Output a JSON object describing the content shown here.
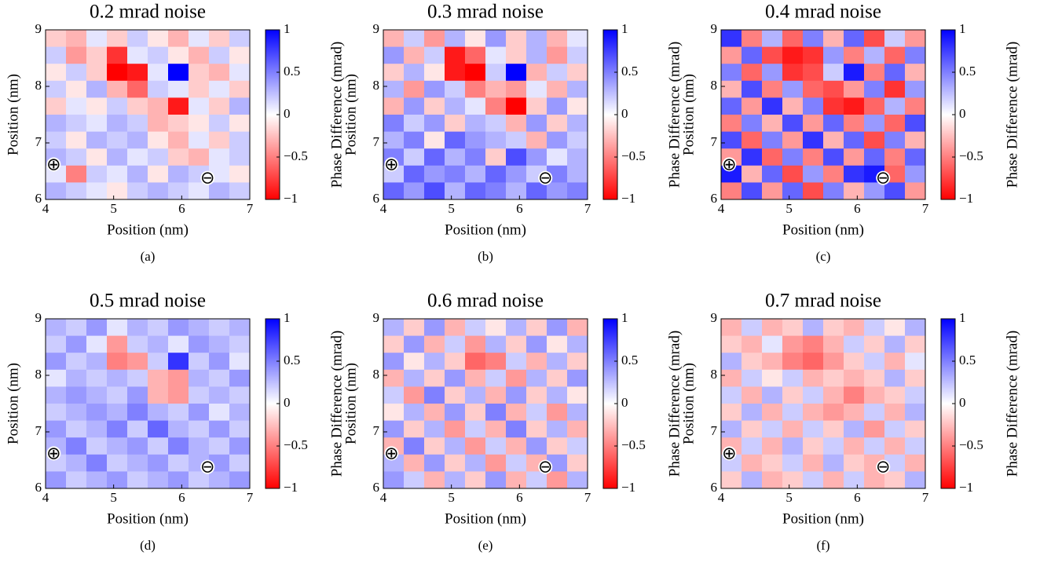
{
  "chart_data": [
    {
      "type": "heatmap",
      "title": "0.2 mrad noise",
      "caption": "(a)",
      "xlabel": "Position (nm)",
      "ylabel": "Position (nm)",
      "colorbar_label": "Phase Difference (mrad)",
      "xlim": [
        4,
        7
      ],
      "ylim": [
        6,
        9
      ],
      "xticks": [
        4,
        5,
        6,
        7
      ],
      "yticks": [
        6,
        7,
        8,
        9
      ],
      "clim": [
        -1,
        1
      ],
      "cticks": [
        {
          "value": -1,
          "label": "−1"
        },
        {
          "value": -0.5,
          "label": "−0.5"
        },
        0,
        0.5,
        1
      ],
      "cmap": [
        "#ff0000",
        "#ffffff",
        "#0000ff"
      ],
      "annotations": [
        {
          "text": "⊕",
          "x": 4.12,
          "y": 6.62
        },
        {
          "text": "⊖",
          "x": 6.38,
          "y": 6.38
        }
      ],
      "z": [
        [
          -0.2,
          -0.3,
          0.1,
          -0.2,
          0.2,
          -0.1,
          -0.3,
          0.1,
          -0.2,
          0.2
        ],
        [
          0.2,
          -0.4,
          -0.2,
          -0.8,
          0.1,
          0.2,
          -0.1,
          -0.3,
          0.2,
          -0.1
        ],
        [
          -0.1,
          0.2,
          -0.2,
          -1,
          -0.9,
          0.1,
          1,
          -0.2,
          -0.3,
          0.1
        ],
        [
          0.2,
          -0.1,
          0.3,
          -0.3,
          -0.6,
          0.2,
          0.1,
          -0.2,
          0.1,
          -0.2
        ],
        [
          -0.2,
          0.1,
          -0.1,
          0.2,
          -0.2,
          -0.3,
          -0.9,
          0.1,
          -0.2,
          0.3
        ],
        [
          0.3,
          0.2,
          0.1,
          0.3,
          0.2,
          -0.3,
          -0.2,
          -0.1,
          0.2,
          -0.1
        ],
        [
          0.2,
          -0.1,
          0.3,
          0.2,
          0.3,
          -0.1,
          -0.3,
          0.1,
          -0.2,
          0.2
        ],
        [
          0.3,
          0.2,
          -0.1,
          0.3,
          0.1,
          0.2,
          -0.2,
          -0.3,
          0.1,
          0.2
        ],
        [
          0.1,
          -0.5,
          0.2,
          0.1,
          0.3,
          -0.1,
          0.3,
          0.2,
          0.1,
          -0.1
        ],
        [
          0.3,
          0.2,
          0.1,
          -0.1,
          0.2,
          0.3,
          0.2,
          0.1,
          0.3,
          0.2
        ]
      ]
    },
    {
      "type": "heatmap",
      "title": "0.3 mrad noise",
      "caption": "(b)",
      "xlabel": "Position (nm)",
      "ylabel": "Position (nm)",
      "colorbar_label": "Phase Difference (mrad)",
      "xlim": [
        4,
        7
      ],
      "ylim": [
        6,
        9
      ],
      "xticks": [
        4,
        5,
        6,
        7
      ],
      "yticks": [
        6,
        7,
        8,
        9
      ],
      "clim": [
        -1,
        1
      ],
      "cticks": [
        {
          "value": -1,
          "label": "−1"
        },
        {
          "value": -0.5,
          "label": "−0.5"
        },
        0,
        0.5,
        1
      ],
      "cmap": [
        "#ff0000",
        "#ffffff",
        "#0000ff"
      ],
      "annotations": [
        {
          "text": "⊕",
          "x": 4.12,
          "y": 6.62
        },
        {
          "text": "⊖",
          "x": 6.38,
          "y": 6.38
        }
      ],
      "z": [
        [
          -0.3,
          0.2,
          -0.4,
          0.3,
          -0.1,
          0.4,
          -0.2,
          0.3,
          -0.3,
          0.1
        ],
        [
          0.4,
          -0.3,
          0.2,
          -0.9,
          -0.6,
          0.1,
          -0.2,
          0.3,
          -0.4,
          0.2
        ],
        [
          -0.2,
          0.3,
          -0.1,
          -0.9,
          -1,
          0.2,
          1,
          -0.3,
          0.2,
          -0.2
        ],
        [
          0.3,
          -0.4,
          0.4,
          0.2,
          -0.5,
          -0.3,
          -0.4,
          0.1,
          -0.3,
          0.3
        ],
        [
          -0.3,
          0.4,
          -0.2,
          0.3,
          0.1,
          -0.5,
          -1,
          -0.2,
          0.4,
          -0.1
        ],
        [
          0.5,
          0.2,
          0.4,
          -0.2,
          0.3,
          0.2,
          -0.3,
          0.4,
          -0.2,
          0.3
        ],
        [
          0.3,
          0.5,
          -0.1,
          0.6,
          0.4,
          0.3,
          0.2,
          -0.3,
          0.4,
          0.2
        ],
        [
          0.5,
          0.2,
          0.6,
          0.3,
          0.5,
          -0.2,
          0.7,
          0.4,
          0.1,
          0.3
        ],
        [
          0.2,
          0.6,
          0.4,
          0.5,
          0.3,
          0.6,
          0.4,
          0.2,
          0.5,
          0.3
        ],
        [
          0.6,
          0.4,
          0.7,
          0.3,
          0.6,
          0.5,
          0.3,
          0.6,
          0.4,
          0.5
        ]
      ]
    },
    {
      "type": "heatmap",
      "title": "0.4 mrad noise",
      "caption": "(c)",
      "xlabel": "Position (nm)",
      "ylabel": "Position (nm)",
      "colorbar_label": "Phase Difference (mrad)",
      "xlim": [
        4,
        7
      ],
      "ylim": [
        6,
        9
      ],
      "xticks": [
        4,
        5,
        6,
        7
      ],
      "yticks": [
        6,
        7,
        8,
        9
      ],
      "clim": [
        -1,
        1
      ],
      "cticks": [
        {
          "value": -1,
          "label": "−1"
        },
        {
          "value": -0.5,
          "label": "−0.5"
        },
        0,
        0.5,
        1
      ],
      "cmap": [
        "#ff0000",
        "#ffffff",
        "#0000ff"
      ],
      "annotations": [
        {
          "text": "⊕",
          "x": 4.12,
          "y": 6.62
        },
        {
          "text": "⊖",
          "x": 6.38,
          "y": 6.38
        }
      ],
      "z": [
        [
          0.8,
          -0.5,
          0.3,
          -0.6,
          0.5,
          -0.3,
          0.6,
          -0.7,
          0.2,
          -0.4
        ],
        [
          -0.4,
          0.6,
          -0.7,
          -0.9,
          -0.8,
          0.4,
          -0.5,
          0.3,
          -0.6,
          0.5
        ],
        [
          0.5,
          -0.6,
          0.4,
          -0.8,
          -0.7,
          0.2,
          0.9,
          -0.5,
          0.6,
          -0.3
        ],
        [
          -0.3,
          0.7,
          -0.5,
          0.4,
          -0.6,
          -0.7,
          -0.4,
          0.5,
          -0.8,
          0.4
        ],
        [
          0.6,
          -0.4,
          0.8,
          -0.3,
          0.5,
          -0.8,
          -0.9,
          -0.6,
          0.3,
          -0.5
        ],
        [
          -0.5,
          0.5,
          -0.3,
          0.7,
          -0.4,
          0.6,
          -0.5,
          0.4,
          -0.6,
          0.7
        ],
        [
          0.7,
          -0.6,
          0.5,
          -0.4,
          0.8,
          -0.3,
          0.6,
          -0.7,
          0.5,
          -0.3
        ],
        [
          -0.4,
          0.8,
          -0.6,
          0.5,
          -0.5,
          0.7,
          -0.4,
          0.6,
          -0.5,
          0.6
        ],
        [
          0.9,
          -0.3,
          0.6,
          -0.7,
          0.4,
          -0.5,
          0.8,
          0.9,
          -0.6,
          0.4
        ],
        [
          -0.5,
          0.7,
          -0.4,
          0.6,
          -0.7,
          0.5,
          -0.3,
          0.4,
          0.7,
          -0.4
        ]
      ]
    },
    {
      "type": "heatmap",
      "title": "0.5 mrad noise",
      "caption": "(d)",
      "xlabel": "Position (nm)",
      "ylabel": "Position (nm)",
      "colorbar_label": "Phase Difference (mrad)",
      "xlim": [
        4,
        7
      ],
      "ylim": [
        6,
        9
      ],
      "xticks": [
        4,
        5,
        6,
        7
      ],
      "yticks": [
        6,
        7,
        8,
        9
      ],
      "clim": [
        -1,
        1
      ],
      "cticks": [
        {
          "value": -1,
          "label": "−1"
        },
        {
          "value": -0.5,
          "label": "−0.5"
        },
        0,
        0.5,
        1
      ],
      "cmap": [
        "#ff0000",
        "#ffffff",
        "#0000ff"
      ],
      "annotations": [
        {
          "text": "⊕",
          "x": 4.12,
          "y": 6.62
        },
        {
          "text": "⊖",
          "x": 6.38,
          "y": 6.38
        }
      ],
      "z": [
        [
          0.3,
          0.2,
          0.4,
          0.1,
          0.3,
          0.2,
          0.4,
          0.3,
          0.2,
          0.3
        ],
        [
          0.2,
          0.4,
          0.1,
          -0.4,
          0.2,
          0.3,
          0.1,
          0.4,
          0.3,
          0.2
        ],
        [
          0.4,
          0.2,
          0.3,
          -0.5,
          -0.4,
          0.2,
          0.8,
          0.2,
          0.4,
          0.1
        ],
        [
          0.1,
          0.3,
          0.2,
          0.3,
          0.2,
          -0.3,
          -0.4,
          0.3,
          0.2,
          0.4
        ],
        [
          0.3,
          0.4,
          0.3,
          0.2,
          0.4,
          -0.3,
          -0.4,
          0.2,
          0.3,
          0.2
        ],
        [
          0.2,
          0.3,
          0.4,
          0.3,
          0.5,
          0.3,
          0.2,
          0.4,
          0.1,
          0.3
        ],
        [
          0.4,
          0.2,
          0.3,
          0.5,
          0.2,
          0.6,
          0.3,
          0.2,
          0.4,
          0.2
        ],
        [
          0.3,
          0.5,
          0.2,
          0.3,
          0.4,
          0.2,
          0.5,
          0.3,
          0.2,
          0.4
        ],
        [
          0.2,
          0.3,
          0.5,
          0.2,
          0.3,
          0.4,
          0.2,
          0.3,
          0.4,
          0.2
        ],
        [
          0.4,
          0.2,
          0.3,
          0.4,
          0.2,
          0.3,
          0.4,
          0.2,
          0.3,
          0.4
        ]
      ]
    },
    {
      "type": "heatmap",
      "title": "0.6 mrad noise",
      "caption": "(e)",
      "xlabel": "Position (nm)",
      "ylabel": "Position (nm)",
      "colorbar_label": "Phase Difference (mrad)",
      "xlim": [
        4,
        7
      ],
      "ylim": [
        6,
        9
      ],
      "xticks": [
        4,
        5,
        6,
        7
      ],
      "yticks": [
        6,
        7,
        8,
        9
      ],
      "clim": [
        -1,
        1
      ],
      "cticks": [
        {
          "value": -1,
          "label": "−1"
        },
        {
          "value": -0.5,
          "label": "−0.5"
        },
        0,
        0.5,
        1
      ],
      "cmap": [
        "#ff0000",
        "#ffffff",
        "#0000ff"
      ],
      "annotations": [
        {
          "text": "⊕",
          "x": 4.12,
          "y": 6.62
        },
        {
          "text": "⊖",
          "x": 6.38,
          "y": 6.38
        }
      ],
      "z": [
        [
          0.3,
          -0.2,
          0.4,
          -0.3,
          0.2,
          -0.1,
          0.3,
          -0.2,
          0.4,
          -0.3
        ],
        [
          -0.2,
          0.4,
          -0.3,
          0.2,
          -0.4,
          0.3,
          -0.2,
          0.4,
          -0.1,
          0.3
        ],
        [
          0.4,
          -0.1,
          0.3,
          -0.2,
          -0.6,
          -0.5,
          0.2,
          -0.3,
          0.3,
          -0.2
        ],
        [
          -0.3,
          0.3,
          -0.2,
          0.4,
          -0.3,
          0.2,
          -0.4,
          0.3,
          -0.2,
          0.4
        ],
        [
          0.2,
          -0.4,
          0.5,
          -0.2,
          0.3,
          -0.3,
          0.4,
          -0.2,
          0.3,
          -0.1
        ],
        [
          -0.1,
          0.3,
          -0.3,
          0.4,
          -0.2,
          0.5,
          -0.3,
          0.2,
          -0.4,
          0.3
        ],
        [
          0.4,
          -0.2,
          0.3,
          -0.4,
          0.2,
          -0.3,
          0.5,
          -0.2,
          0.3,
          -0.3
        ],
        [
          -0.3,
          0.5,
          -0.2,
          0.3,
          -0.4,
          0.2,
          -0.3,
          0.4,
          -0.2,
          0.2
        ],
        [
          0.3,
          -0.3,
          0.4,
          -0.2,
          0.3,
          -0.4,
          0.2,
          -0.3,
          0.4,
          -0.2
        ],
        [
          0.4,
          0.2,
          -0.3,
          0.3,
          -0.2,
          0.4,
          -0.3,
          0.2,
          -0.4,
          0.3
        ]
      ]
    },
    {
      "type": "heatmap",
      "title": "0.7 mrad noise",
      "caption": "(f)",
      "xlabel": "Position (nm)",
      "ylabel": "Position (nm)",
      "colorbar_label": "Phase Difference (mrad)",
      "xlim": [
        4,
        7
      ],
      "ylim": [
        6,
        9
      ],
      "xticks": [
        4,
        5,
        6,
        7
      ],
      "yticks": [
        6,
        7,
        8,
        9
      ],
      "clim": [
        -1,
        1
      ],
      "cticks": [
        {
          "value": -1,
          "label": "−1"
        },
        {
          "value": -0.5,
          "label": "−0.5"
        },
        0,
        0.5,
        1
      ],
      "cmap": [
        "#ff0000",
        "#ffffff",
        "#0000ff"
      ],
      "annotations": [
        {
          "text": "⊕",
          "x": 4.12,
          "y": 6.62
        },
        {
          "text": "⊖",
          "x": 6.38,
          "y": 6.38
        }
      ],
      "z": [
        [
          -0.3,
          0.2,
          -0.3,
          -0.2,
          0.3,
          -0.2,
          -0.3,
          0.2,
          -0.1,
          0.3
        ],
        [
          -0.2,
          -0.3,
          0.1,
          -0.4,
          -0.5,
          -0.3,
          0.2,
          -0.2,
          0.3,
          -0.2
        ],
        [
          0.3,
          -0.2,
          -0.3,
          -0.5,
          -0.6,
          -0.4,
          -0.2,
          0.2,
          -0.3,
          0.1
        ],
        [
          -0.3,
          0.2,
          -0.1,
          0.2,
          -0.3,
          -0.2,
          -0.3,
          -0.2,
          0.3,
          -0.2
        ],
        [
          0.2,
          -0.3,
          0.3,
          -0.2,
          0.2,
          -0.3,
          -0.5,
          -0.3,
          -0.2,
          0.2
        ],
        [
          -0.2,
          0.3,
          -0.3,
          0.2,
          -0.3,
          -0.4,
          -0.3,
          0.2,
          -0.3,
          0.3
        ],
        [
          0.3,
          -0.2,
          0.2,
          -0.3,
          0.2,
          -0.2,
          0.3,
          -0.4,
          0.2,
          -0.2
        ],
        [
          -0.3,
          0.2,
          -0.3,
          0.3,
          -0.2,
          0.2,
          -0.3,
          0.2,
          -0.3,
          0.2
        ],
        [
          0.2,
          -0.3,
          -0.2,
          0.2,
          -0.3,
          0.3,
          -0.2,
          -0.3,
          0.2,
          -0.3
        ],
        [
          -0.2,
          0.3,
          -0.3,
          -0.2,
          0.2,
          -0.3,
          0.2,
          -0.3,
          -0.2,
          0.3
        ]
      ]
    }
  ]
}
